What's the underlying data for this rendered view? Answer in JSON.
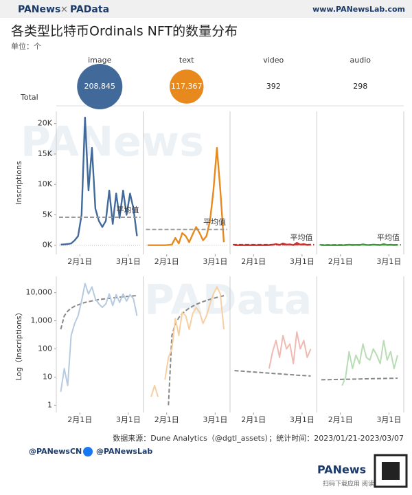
{
  "header": {
    "brand": "PANews",
    "cross": "×",
    "brand2": "PAData",
    "site": "www.PANewsLab.com"
  },
  "title": "各类型比特币Ordinals NFT的数量分布",
  "unit": "单位：个",
  "watermarks": [
    "PANews",
    "PAData"
  ],
  "chart_data": [
    {
      "type": "bubble",
      "label": "Total",
      "values": [
        208845,
        117367,
        392,
        298
      ],
      "value_labels": [
        "208,845",
        "117,367",
        "392",
        "298"
      ],
      "colors": [
        "#41699a",
        "#e8891e",
        null,
        null
      ]
    },
    {
      "type": "line",
      "y_label": "Inscriptions",
      "x": [
        "2023-01-21",
        "2023-01-23",
        "2023-01-25",
        "2023-01-27",
        "2023-01-29",
        "2023-01-31",
        "2023-02-02",
        "2023-02-04",
        "2023-02-06",
        "2023-02-08",
        "2023-02-10",
        "2023-02-12",
        "2023-02-14",
        "2023-02-16",
        "2023-02-18",
        "2023-02-20",
        "2023-02-22",
        "2023-02-24",
        "2023-02-26",
        "2023-02-28",
        "2023-03-02",
        "2023-03-04",
        "2023-03-06"
      ],
      "xlim": [
        "2023-01-20",
        "2023-03-08"
      ],
      "xticks": [
        {
          "value": "2023-02-01",
          "label": "2月1日"
        },
        {
          "value": "2023-03-01",
          "label": "3月1日"
        }
      ],
      "ylim": [
        -1500,
        22000
      ],
      "yticks": [
        {
          "value": 0,
          "label": "0K"
        },
        {
          "value": 5000,
          "label": "5K"
        },
        {
          "value": 10000,
          "label": "10K"
        },
        {
          "value": 15000,
          "label": "15K"
        },
        {
          "value": 20000,
          "label": "20K"
        }
      ],
      "series": [
        {
          "name": "image",
          "color": "#41699a",
          "average": 4600,
          "average_label": "平均值",
          "average_color": "#999999",
          "values": [
            100,
            150,
            200,
            300,
            800,
            1500,
            5000,
            21000,
            9000,
            16000,
            6000,
            4000,
            3000,
            4000,
            9000,
            3500,
            8500,
            4500,
            9000,
            5000,
            8500,
            6000,
            1500
          ]
        },
        {
          "name": "text",
          "color": "#e8891e",
          "average": 2600,
          "average_label": "平均值",
          "average_color": "#999999",
          "values": [
            0,
            0,
            0,
            0,
            0,
            0,
            50,
            100,
            1200,
            300,
            2000,
            1500,
            500,
            1800,
            3000,
            2000,
            800,
            1500,
            4000,
            9000,
            16000,
            9000,
            500
          ]
        },
        {
          "name": "video",
          "color": "#c9302c",
          "average": 100,
          "average_label": "平均值",
          "average_color": "#c9302c",
          "values": [
            0,
            0,
            0,
            0,
            0,
            0,
            0,
            0,
            0,
            0,
            20,
            80,
            200,
            50,
            300,
            100,
            150,
            30,
            400,
            100,
            200,
            50,
            100
          ]
        },
        {
          "name": "audio",
          "color": "#3a9a3a",
          "average": 70,
          "average_label": "平均值",
          "average_color": "#3a9a3a",
          "values": [
            0,
            0,
            0,
            0,
            0,
            0,
            5,
            10,
            80,
            20,
            60,
            30,
            150,
            50,
            40,
            100,
            60,
            30,
            200,
            40,
            80,
            20,
            60
          ]
        }
      ]
    },
    {
      "type": "line",
      "y_label": "Log（Inscriptions）",
      "log": true,
      "x": [
        "2023-01-21",
        "2023-01-23",
        "2023-01-25",
        "2023-01-27",
        "2023-01-29",
        "2023-01-31",
        "2023-02-02",
        "2023-02-04",
        "2023-02-06",
        "2023-02-08",
        "2023-02-10",
        "2023-02-12",
        "2023-02-14",
        "2023-02-16",
        "2023-02-18",
        "2023-02-20",
        "2023-02-22",
        "2023-02-24",
        "2023-02-26",
        "2023-02-28",
        "2023-03-02",
        "2023-03-04",
        "2023-03-06"
      ],
      "xlim": [
        "2023-01-20",
        "2023-03-08"
      ],
      "xticks": [
        {
          "value": "2023-02-01",
          "label": "2月1日"
        },
        {
          "value": "2023-03-01",
          "label": "3月1日"
        }
      ],
      "ylim": [
        0.55,
        38000
      ],
      "yticks": [
        1,
        10,
        100,
        {
          "value": 1000,
          "label": "1,000"
        },
        {
          "value": 10000,
          "label": "10,000"
        }
      ],
      "series": [
        {
          "name": "image",
          "color": "#b6cbe0",
          "trend_color": "#888888",
          "values": [
            3,
            20,
            5,
            300,
            800,
            1500,
            5000,
            21000,
            9000,
            16000,
            6000,
            4000,
            3000,
            4000,
            9000,
            3500,
            8500,
            4500,
            9000,
            5000,
            8500,
            6000,
            1500
          ],
          "trend": [
            500,
            1500,
            2200,
            2800,
            3300,
            3700,
            4100,
            4500,
            4800,
            5100,
            5400,
            5700,
            5900,
            6100,
            6300,
            6500,
            6700,
            6900,
            7100,
            7300,
            7500,
            7700,
            7900
          ]
        },
        {
          "name": "text",
          "color": "#f6cfa2",
          "trend_color": "#888888",
          "values": [
            null,
            2,
            5,
            2,
            null,
            8,
            50,
            100,
            1200,
            300,
            2000,
            1500,
            500,
            1800,
            3000,
            2000,
            800,
            1500,
            4000,
            9000,
            16000,
            9000,
            500
          ],
          "trend": [
            null,
            null,
            null,
            null,
            null,
            null,
            1,
            300,
            800,
            1300,
            1800,
            2300,
            2800,
            3300,
            3800,
            4300,
            4800,
            5300,
            5800,
            6300,
            6800,
            7300,
            7800
          ]
        },
        {
          "name": "video",
          "color": "#f0bab2",
          "trend_color": "#888888",
          "values": [
            null,
            null,
            null,
            null,
            null,
            null,
            null,
            null,
            null,
            null,
            20,
            80,
            200,
            50,
            300,
            100,
            150,
            30,
            400,
            100,
            200,
            50,
            100
          ],
          "trend": [
            17,
            16.6,
            16.3,
            16,
            15.6,
            15.3,
            15,
            14.7,
            14.4,
            14.1,
            13.8,
            13.5,
            13.2,
            13,
            12.7,
            12.4,
            12.2,
            12,
            11.7,
            11.5,
            11.3,
            11.1,
            10.9
          ]
        },
        {
          "name": "audio",
          "color": "#b8dcb4",
          "trend_color": "#888888",
          "values": [
            null,
            null,
            null,
            null,
            null,
            null,
            5,
            10,
            80,
            20,
            60,
            30,
            150,
            50,
            40,
            100,
            60,
            30,
            200,
            40,
            80,
            20,
            60
          ],
          "trend": [
            8,
            8.05,
            8.1,
            8.15,
            8.2,
            8.25,
            8.3,
            8.35,
            8.4,
            8.45,
            8.5,
            8.55,
            8.6,
            8.65,
            8.7,
            8.75,
            8.8,
            8.85,
            8.9,
            8.95,
            9,
            9.05,
            9.1
          ]
        }
      ]
    }
  ],
  "footer": {
    "source": "数据来源：Dune Analytics（@dgtl_assets）；统计时间：2023/01/21-2023/03/07",
    "twitter": "@PANewsCN",
    "facebook": "@PANewsLab",
    "brand": "PANews",
    "qr_note": "扫码下载应用 阅读原文"
  }
}
